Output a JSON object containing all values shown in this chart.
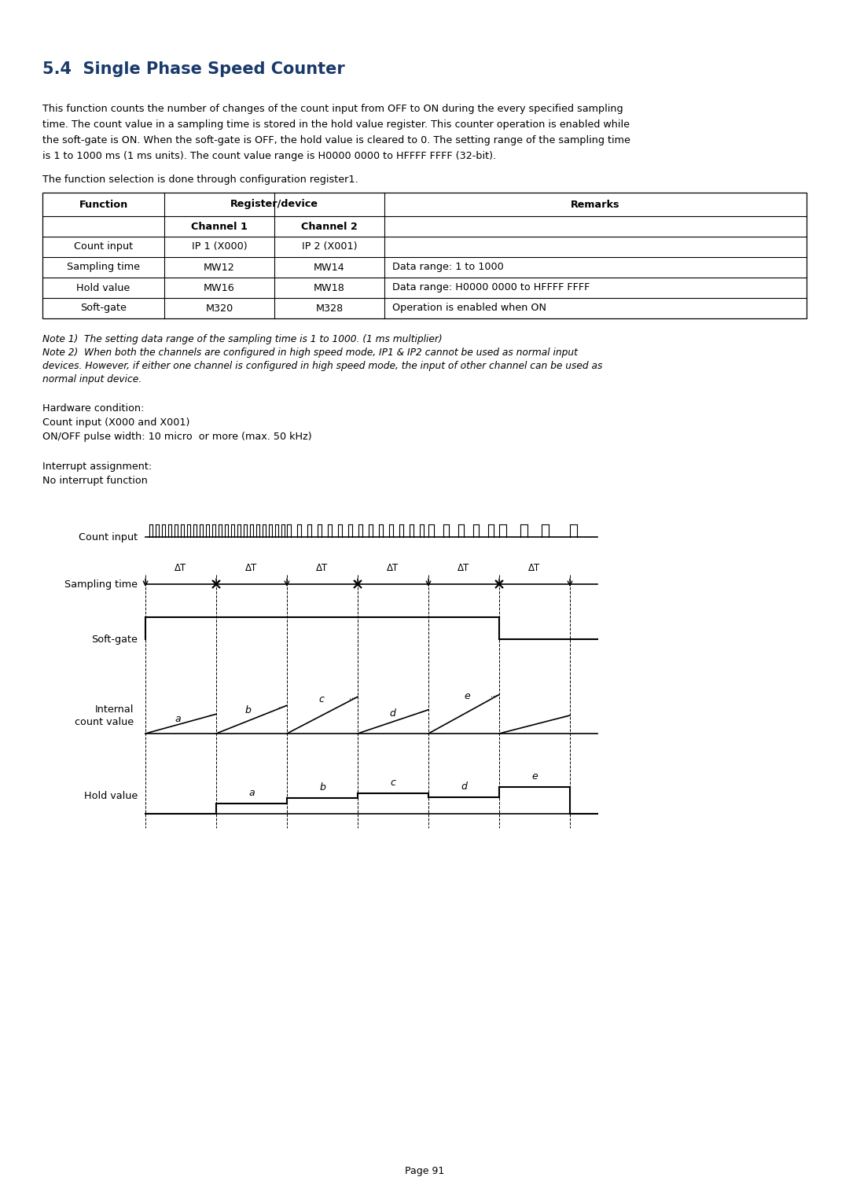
{
  "title": "5.4  Single Phase Speed Counter",
  "title_color": "#1a3a6b",
  "body_text": "This function counts the number of changes of the count input from OFF to ON during the every specified sampling\ntime. The count value in a sampling time is stored in the hold value register. This counter operation is enabled while\nthe soft-gate is ON. When the soft-gate is OFF, the hold value is cleared to 0. The setting range of the sampling time\nis 1 to 1000 ms (1 ms units). The count value range is H0000 0000 to HFFFF FFFF (32-bit).",
  "config_text": "The function selection is done through configuration register1.",
  "table_rows": [
    [
      "Count input",
      "IP 1 (X000)",
      "IP 2 (X001)",
      ""
    ],
    [
      "Sampling time",
      "MW12",
      "MW14",
      "Data range: 1 to 1000"
    ],
    [
      "Hold value",
      "MW16",
      "MW18",
      "Data range: H0000 0000 to HFFFF FFFF"
    ],
    [
      "Soft-gate",
      "M320",
      "M328",
      "Operation is enabled when ON"
    ]
  ],
  "note1": "Note 1)  The setting data range of the sampling time is 1 to 1000. (1 ms multiplier)",
  "note2": "Note 2)  When both the channels are configured in high speed mode, IP1 & IP2 cannot be used as normal input\ndevices. However, if either one channel is configured in high speed mode, the input of other channel can be used as\nnormal input device.",
  "hw_condition": "Hardware condition:\nCount input (X000 and X001)\nON/OFF pulse width: 10 micro  or more (max. 50 kHz)",
  "interrupt_text": "Interrupt assignment:\nNo interrupt function",
  "page_number": "Page 91",
  "diagram_labels": {
    "count_input": "Count input",
    "sampling_time": "Sampling time",
    "soft_gate": "Soft-gate",
    "internal_count": "Internal\ncount value",
    "hold_value": "Hold value"
  },
  "delta_t_labels": [
    "ΔT",
    "ΔT",
    "ΔT",
    "ΔT",
    "ΔT",
    "ΔT"
  ]
}
